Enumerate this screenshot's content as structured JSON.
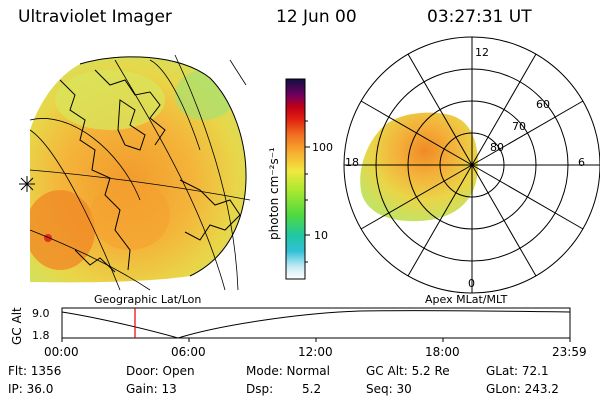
{
  "header": {
    "instrument": "Ultraviolet Imager",
    "date": "12 Jun 00",
    "time": "03:27:31 UT"
  },
  "colorbar": {
    "unit_label": "photon cm⁻²s⁻¹",
    "tick_100": "100",
    "tick_10": "10"
  },
  "polar": {
    "mlt_labels": {
      "noon": "12",
      "dusk": "18",
      "dawn": "6",
      "midnight": "0"
    },
    "lat_labels": {
      "l60": "60",
      "l70": "70",
      "l80": "80"
    }
  },
  "captions": {
    "left": "Geographic Lat/Lon",
    "right": "Apex MLat/MLT"
  },
  "timeline": {
    "axis_label": "GC Alt",
    "y_top": "9.0",
    "y_bottom": "1.8",
    "x_ticks": [
      "00:00",
      "06:00",
      "12:00",
      "18:00",
      "23:59"
    ],
    "marker_color": "#e00000"
  },
  "info": {
    "flt": "Flt: 1356",
    "ip": "IP: 36.0",
    "door": "Door: Open",
    "gain": "Gain: 13",
    "mode": "Mode: Normal",
    "dsp_label": "Dsp:",
    "dsp_value": "5.2",
    "gcalt": "GC Alt: 5.2 Re",
    "seq": "Seq: 30",
    "glat": "GLat: 72.1",
    "glon": "GLon: 243.2"
  }
}
